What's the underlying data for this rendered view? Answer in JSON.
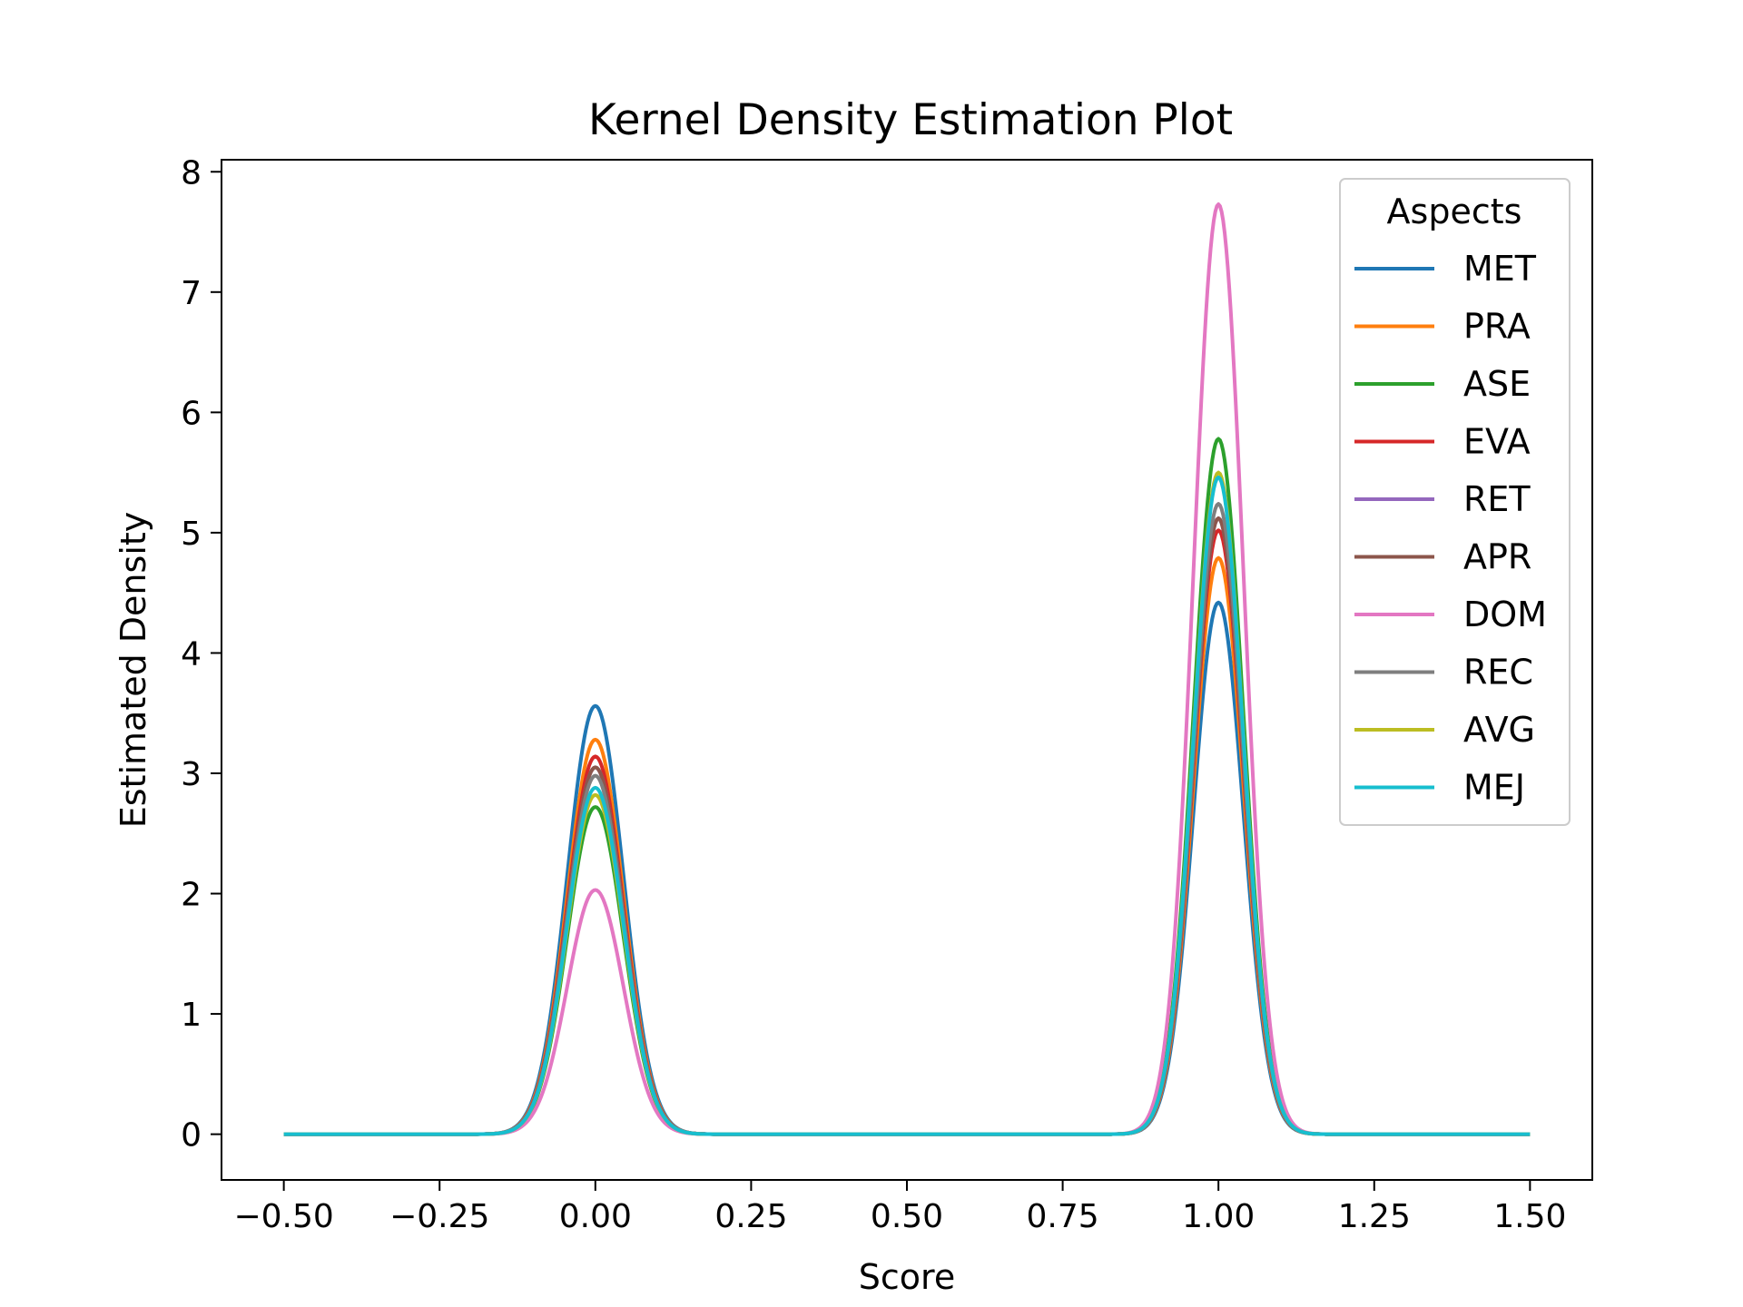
{
  "chart_data": {
    "type": "line",
    "title": "Kernel Density Estimation Plot",
    "xlabel": "Score",
    "ylabel": "Estimated Density",
    "xlim": [
      -0.6,
      1.6
    ],
    "ylim": [
      -0.38,
      8.1
    ],
    "x_range": [
      -0.5,
      1.5
    ],
    "peaks_x": [
      0.0,
      1.0
    ],
    "x_ticks": [
      -0.5,
      -0.25,
      0.0,
      0.25,
      0.5,
      0.75,
      1.0,
      1.25,
      1.5
    ],
    "x_tick_labels": [
      "−0.50",
      "−0.25",
      "0.00",
      "0.25",
      "0.50",
      "0.75",
      "1.00",
      "1.25",
      "1.50"
    ],
    "y_ticks": [
      0,
      1,
      2,
      3,
      4,
      5,
      6,
      7,
      8
    ],
    "y_tick_labels": [
      "0",
      "1",
      "2",
      "3",
      "4",
      "5",
      "6",
      "7",
      "8"
    ],
    "grid": false,
    "legend": {
      "title": "Aspects",
      "placement": "top-right"
    },
    "series": [
      {
        "name": "MET",
        "color": "#1f77b4",
        "peak_at_0": 3.56,
        "peak_at_1": 4.42
      },
      {
        "name": "PRA",
        "color": "#ff7f0e",
        "peak_at_0": 3.28,
        "peak_at_1": 4.79
      },
      {
        "name": "ASE",
        "color": "#2ca02c",
        "peak_at_0": 2.72,
        "peak_at_1": 5.78
      },
      {
        "name": "EVA",
        "color": "#d62728",
        "peak_at_0": 3.14,
        "peak_at_1": 5.02
      },
      {
        "name": "RET",
        "color": "#9467bd",
        "peak_at_0": 3.05,
        "peak_at_1": 5.12
      },
      {
        "name": "APR",
        "color": "#8c564b",
        "peak_at_0": 3.05,
        "peak_at_1": 5.12
      },
      {
        "name": "DOM",
        "color": "#e377c2",
        "peak_at_0": 2.03,
        "peak_at_1": 7.73
      },
      {
        "name": "REC",
        "color": "#7f7f7f",
        "peak_at_0": 2.98,
        "peak_at_1": 5.24
      },
      {
        "name": "AVG",
        "color": "#bcbd22",
        "peak_at_0": 2.82,
        "peak_at_1": 5.5
      },
      {
        "name": "MEJ",
        "color": "#17becf",
        "peak_at_0": 2.88,
        "peak_at_1": 5.46
      }
    ]
  }
}
